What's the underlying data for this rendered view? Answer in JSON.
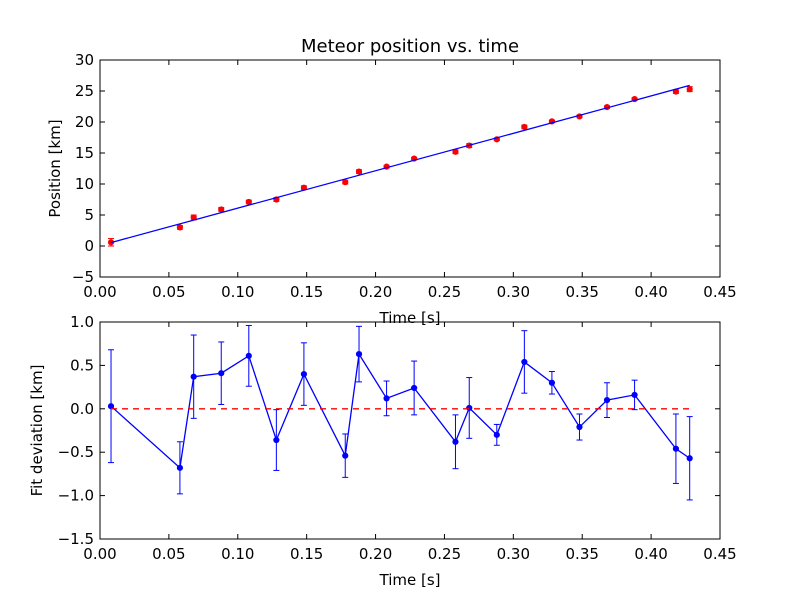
{
  "chart_data": [
    {
      "type": "scatter",
      "title": "Meteor position vs. time",
      "xlabel": "Time [s]",
      "ylabel": "Position [km]",
      "xlim": [
        0.0,
        0.45
      ],
      "ylim": [
        -5,
        30
      ],
      "xticks": [
        "0.00",
        "0.05",
        "0.10",
        "0.15",
        "0.20",
        "0.25",
        "0.30",
        "0.35",
        "0.40",
        "0.45"
      ],
      "yticks": [
        "−5",
        "0",
        "5",
        "10",
        "15",
        "20",
        "25",
        "30"
      ],
      "grid": false,
      "series": [
        {
          "kind": "points-with-errorbars",
          "color": "#ff0000",
          "x": [
            0.008,
            0.058,
            0.068,
            0.088,
            0.108,
            0.128,
            0.148,
            0.178,
            0.188,
            0.208,
            0.228,
            0.258,
            0.268,
            0.288,
            0.308,
            0.328,
            0.348,
            0.368,
            0.388,
            0.418,
            0.428
          ],
          "y": [
            0.6,
            3.0,
            4.6,
            5.9,
            7.1,
            7.5,
            9.4,
            10.3,
            12.0,
            12.8,
            14.1,
            15.2,
            16.2,
            17.2,
            19.2,
            20.1,
            20.9,
            22.4,
            23.7,
            24.9,
            25.3
          ],
          "err": [
            0.6,
            0.3,
            0.4,
            0.3,
            0.3,
            0.3,
            0.3,
            0.3,
            0.3,
            0.2,
            0.2,
            0.3,
            0.3,
            0.2,
            0.3,
            0.2,
            0.2,
            0.2,
            0.2,
            0.3,
            0.4
          ]
        },
        {
          "kind": "line",
          "color": "#0000ff",
          "x": [
            0.008,
            0.428
          ],
          "y": [
            0.55,
            25.9
          ]
        }
      ]
    },
    {
      "type": "line",
      "title": "",
      "xlabel": "Time [s]",
      "ylabel": "Fit deviation [km]",
      "xlim": [
        0.0,
        0.45
      ],
      "ylim": [
        -1.5,
        1.0
      ],
      "xticks": [
        "0.00",
        "0.05",
        "0.10",
        "0.15",
        "0.20",
        "0.25",
        "0.30",
        "0.35",
        "0.40",
        "0.45"
      ],
      "yticks": [
        "−1.5",
        "−1.0",
        "−0.5",
        "0.0",
        "0.5",
        "1.0"
      ],
      "grid": false,
      "series": [
        {
          "kind": "line-with-errorbars",
          "color": "#0000ff",
          "x": [
            0.008,
            0.058,
            0.068,
            0.088,
            0.108,
            0.128,
            0.148,
            0.178,
            0.188,
            0.208,
            0.228,
            0.258,
            0.268,
            0.288,
            0.308,
            0.328,
            0.348,
            0.368,
            0.388,
            0.418,
            0.428
          ],
          "y": [
            0.03,
            -0.68,
            0.37,
            0.41,
            0.61,
            -0.36,
            0.4,
            -0.54,
            0.63,
            0.12,
            0.24,
            -0.38,
            0.01,
            -0.3,
            0.54,
            0.3,
            -0.21,
            0.1,
            0.16,
            -0.46,
            -0.57
          ],
          "err": [
            0.65,
            0.3,
            0.48,
            0.36,
            0.35,
            0.35,
            0.36,
            0.25,
            0.32,
            0.2,
            0.31,
            0.31,
            0.35,
            0.12,
            0.36,
            0.13,
            0.15,
            0.2,
            0.17,
            0.4,
            0.48
          ]
        },
        {
          "kind": "dashed-line",
          "color": "#ff0000",
          "x": [
            0.008,
            0.428
          ],
          "y": [
            0.0,
            0.0
          ]
        }
      ]
    }
  ]
}
